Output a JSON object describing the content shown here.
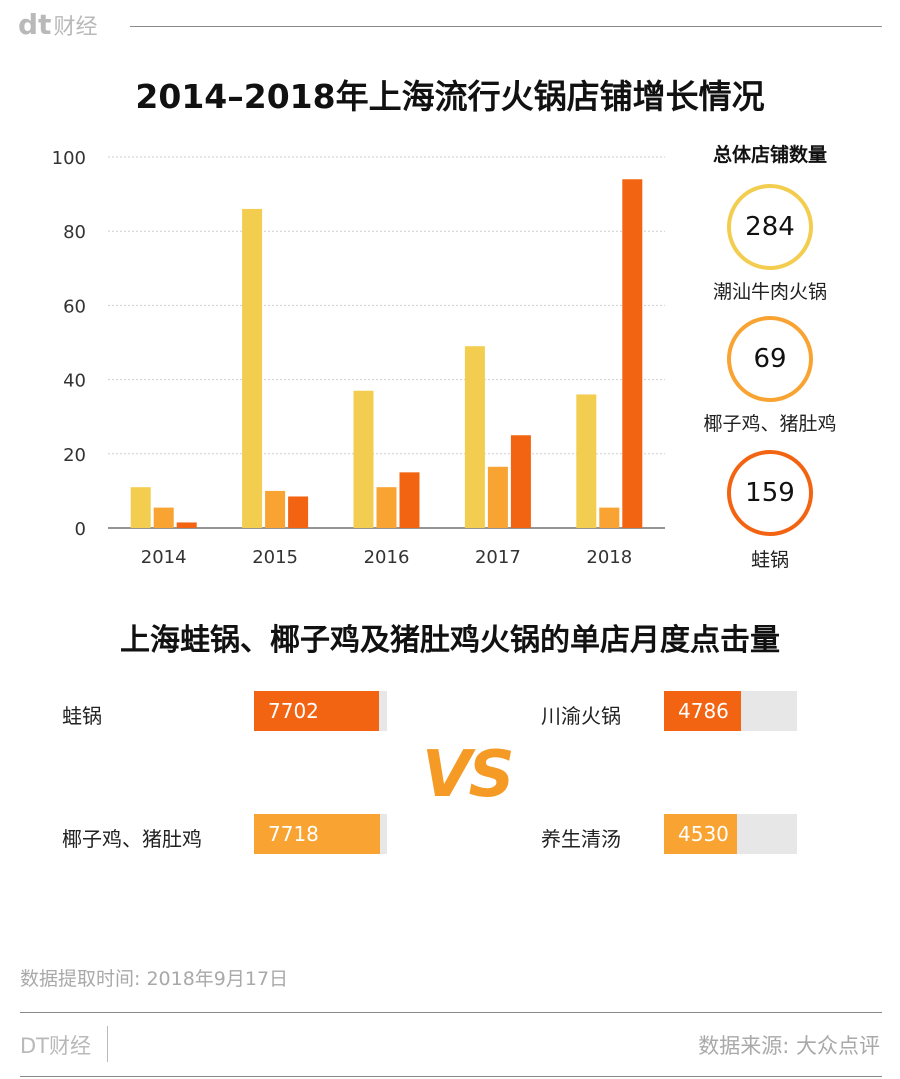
{
  "header": {
    "logo_mark": "dt",
    "logo_text": "财经"
  },
  "chart_data": [
    {
      "type": "bar",
      "title": "2014–2018年上海流行火锅店铺增长情况",
      "categories": [
        "2014",
        "2015",
        "2016",
        "2017",
        "2018"
      ],
      "series": [
        {
          "name": "潮汕牛肉火锅",
          "values": [
            11,
            86,
            37,
            49,
            36
          ]
        },
        {
          "name": "椰子鸡、猪肚鸡",
          "values": [
            5.5,
            10,
            11,
            16.5,
            5.5
          ]
        },
        {
          "name": "蛙锅",
          "values": [
            1.5,
            8.5,
            15,
            25,
            94
          ]
        }
      ],
      "ylim": [
        0,
        100
      ],
      "yticks": [
        "0",
        "20",
        "40",
        "60",
        "80",
        "100"
      ],
      "grid": true,
      "colors": [
        "#f3cd4f",
        "#f8a332",
        "#f26412"
      ]
    },
    {
      "type": "bar",
      "title": "上海蛙锅、椰子鸡及猪肚鸡火锅的单店月度点击量",
      "left": [
        {
          "label": "蛙锅",
          "value": "7702",
          "fraction": 0.94,
          "color": "#f26412"
        },
        {
          "label": "椰子鸡、猪肚鸡",
          "value": "7718",
          "fraction": 0.95,
          "color": "#f8a332"
        }
      ],
      "right": [
        {
          "label": "川渝火锅",
          "value": "4786",
          "fraction": 0.58,
          "color": "#f26412"
        },
        {
          "label": "养生清汤",
          "value": "4530",
          "fraction": 0.55,
          "color": "#f8a332"
        }
      ],
      "vs_text": "VS"
    }
  ],
  "totals": {
    "title": "总体店铺数量",
    "items": [
      {
        "value": "284",
        "label": "潮汕牛肉火锅",
        "color": "#f3cd4f"
      },
      {
        "value": "69",
        "label": "椰子鸡、猪肚鸡",
        "color": "#f8a332"
      },
      {
        "value": "159",
        "label": "蛙锅",
        "color": "#f26412"
      }
    ]
  },
  "footer": {
    "note": "数据提取时间: 2018年9月17日",
    "brand": "DT财经",
    "source": "数据来源: 大众点评"
  }
}
